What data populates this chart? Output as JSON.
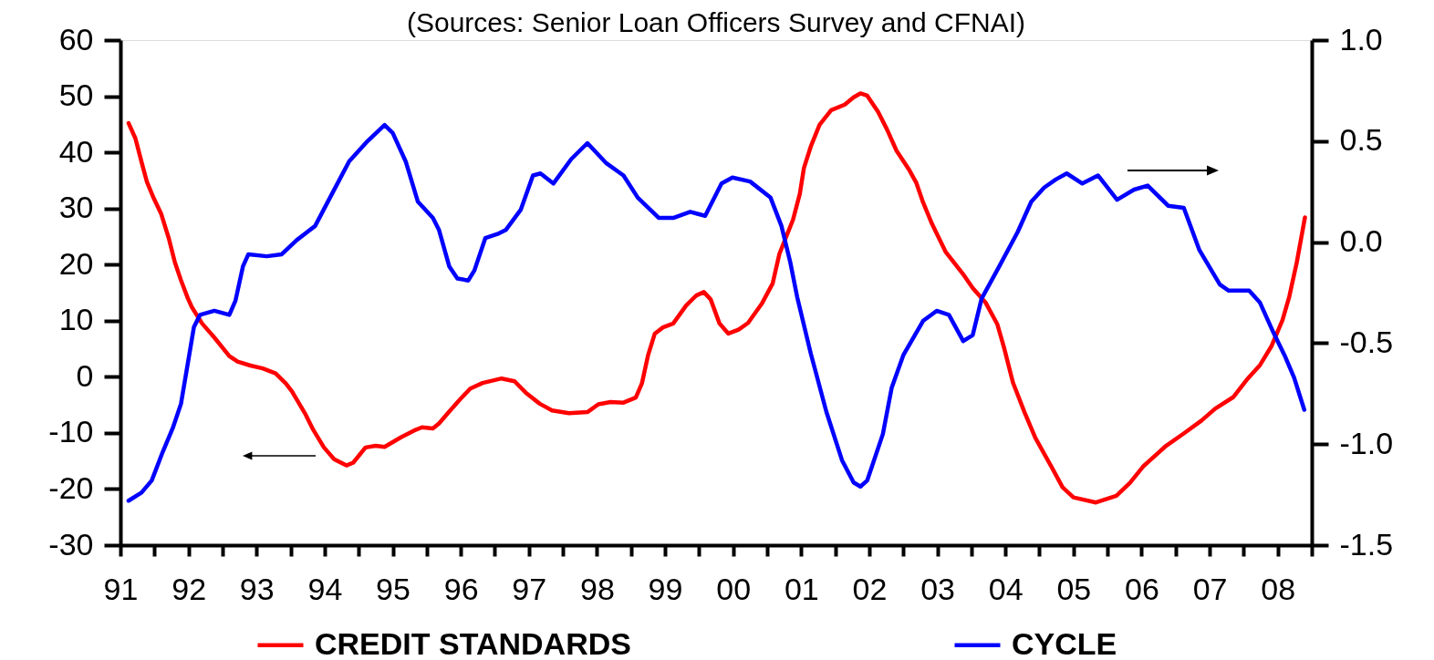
{
  "chart_data": {
    "type": "line",
    "title": "(Sources: Senior Loan Officers Survey and CFNAI)",
    "xlim": [
      1991,
      2008.5
    ],
    "xticks": [
      {
        "value": 1991,
        "label": "91"
      },
      {
        "value": 1991.5,
        "label": null
      },
      {
        "value": 1992,
        "label": "92"
      },
      {
        "value": 1992.5,
        "label": null
      },
      {
        "value": 1993,
        "label": "93"
      },
      {
        "value": 1993.5,
        "label": null
      },
      {
        "value": 1994,
        "label": "94"
      },
      {
        "value": 1994.5,
        "label": null
      },
      {
        "value": 1995,
        "label": "95"
      },
      {
        "value": 1995.5,
        "label": null
      },
      {
        "value": 1996,
        "label": "96"
      },
      {
        "value": 1996.5,
        "label": null
      },
      {
        "value": 1997,
        "label": "97"
      },
      {
        "value": 1997.5,
        "label": null
      },
      {
        "value": 1998,
        "label": "98"
      },
      {
        "value": 1998.5,
        "label": null
      },
      {
        "value": 1999,
        "label": "99"
      },
      {
        "value": 1999.5,
        "label": null
      },
      {
        "value": 2000,
        "label": "00"
      },
      {
        "value": 2000.5,
        "label": null
      },
      {
        "value": 2001,
        "label": "01"
      },
      {
        "value": 2001.5,
        "label": null
      },
      {
        "value": 2002,
        "label": "02"
      },
      {
        "value": 2002.5,
        "label": null
      },
      {
        "value": 2003,
        "label": "03"
      },
      {
        "value": 2003.5,
        "label": null
      },
      {
        "value": 2004,
        "label": "04"
      },
      {
        "value": 2004.5,
        "label": null
      },
      {
        "value": 2005,
        "label": "05"
      },
      {
        "value": 2005.5,
        "label": null
      },
      {
        "value": 2006,
        "label": "06"
      },
      {
        "value": 2006.5,
        "label": null
      },
      {
        "value": 2007,
        "label": "07"
      },
      {
        "value": 2007.5,
        "label": null
      },
      {
        "value": 2008,
        "label": "08"
      },
      {
        "value": 2008.5,
        "label": null
      }
    ],
    "ylim": [
      -30,
      60
    ],
    "yticks": [
      -30,
      -20,
      -10,
      0,
      10,
      20,
      30,
      40,
      50,
      60
    ],
    "y2lim": [
      -1.5,
      1.0
    ],
    "y2ticks": [
      {
        "value": -1.5,
        "label": "-1.5"
      },
      {
        "value": -1,
        "label": "-1.0"
      },
      {
        "value": -0.5,
        "label": "-0.5"
      },
      {
        "value": 0,
        "label": "0.0"
      },
      {
        "value": 0.5,
        "label": "0.5"
      },
      {
        "value": 1,
        "label": "1.0"
      }
    ],
    "legend": "bottom",
    "series": [
      {
        "name": "CREDIT STANDARDS",
        "color": "#ff0000",
        "x": [
          1991.12,
          1991.22,
          1991.31,
          1991.39,
          1991.49,
          1991.6,
          1991.71,
          1991.8,
          1991.89,
          1991.99,
          1992.05,
          1992.2,
          1992.38,
          1992.6,
          1992.72,
          1992.91,
          1993.09,
          1993.28,
          1993.43,
          1993.52,
          1993.71,
          1993.83,
          1993.99,
          1994.14,
          1994.32,
          1994.42,
          1994.6,
          1994.75,
          1994.88,
          1995.12,
          1995.31,
          1995.43,
          1995.59,
          1995.68,
          1995.83,
          1995.99,
          1996.14,
          1996.32,
          1996.6,
          1996.79,
          1996.97,
          1997.16,
          1997.34,
          1997.59,
          1997.86,
          1998.02,
          1998.2,
          1998.39,
          1998.57,
          1998.66,
          1998.75,
          1998.85,
          1998.97,
          1999.12,
          1999.31,
          1999.46,
          1999.57,
          1999.67,
          1999.8,
          1999.93,
          2000.08,
          2000.22,
          2000.42,
          2000.58,
          2000.68,
          2000.88,
          2000.98,
          2001.04,
          2001.14,
          2001.27,
          2001.44,
          2001.64,
          2001.77,
          2001.87,
          2001.97,
          2002.13,
          2002.26,
          2002.4,
          2002.59,
          2002.69,
          2002.79,
          2002.92,
          2003.12,
          2003.39,
          2003.52,
          2003.71,
          2003.88,
          2003.98,
          2004.11,
          2004.28,
          2004.44,
          2004.67,
          2004.84,
          2005.0,
          2005.33,
          2005.63,
          2005.83,
          2006.03,
          2006.36,
          2006.62,
          2006.88,
          2007.08,
          2007.35,
          2007.54,
          2007.74,
          2007.91,
          2008.07,
          2008.17,
          2008.28,
          2008.4
        ],
        "values": [
          45.2,
          42.5,
          38.3,
          34.7,
          31.8,
          29.0,
          24.7,
          20.4,
          17.2,
          14.0,
          12.4,
          9.5,
          7.0,
          3.7,
          2.7,
          2.0,
          1.5,
          0.6,
          -1.2,
          -2.6,
          -6.5,
          -9.4,
          -12.6,
          -14.7,
          -15.8,
          -15.3,
          -12.6,
          -12.3,
          -12.5,
          -10.8,
          -9.6,
          -9.0,
          -9.2,
          -8.3,
          -6.2,
          -4.0,
          -2.1,
          -1.1,
          -0.3,
          -0.8,
          -3.0,
          -4.8,
          -6.0,
          -6.5,
          -6.3,
          -4.9,
          -4.5,
          -4.6,
          -3.7,
          -1.2,
          3.8,
          7.7,
          8.8,
          9.5,
          12.7,
          14.5,
          15.1,
          13.8,
          9.5,
          7.7,
          8.4,
          9.6,
          13.0,
          16.6,
          21.9,
          28.0,
          32.6,
          37.2,
          41.0,
          44.9,
          47.5,
          48.5,
          49.8,
          50.5,
          50.1,
          47.2,
          44.1,
          40.3,
          36.8,
          34.6,
          31.1,
          27.3,
          22.3,
          18.1,
          15.8,
          13.2,
          9.4,
          5.2,
          -1.0,
          -6.3,
          -10.9,
          -15.9,
          -19.7,
          -21.5,
          -22.4,
          -21.2,
          -18.9,
          -15.9,
          -12.3,
          -10.1,
          -7.8,
          -5.7,
          -3.6,
          -0.6,
          2.1,
          5.5,
          10.1,
          14.3,
          20.4,
          28.4
        ]
      },
      {
        "name": "CYCLE",
        "color": "#0000ff",
        "axis": "y2",
        "x": [
          1991.12,
          1991.31,
          1991.46,
          1991.62,
          1991.77,
          1991.89,
          1991.99,
          1992.08,
          1992.17,
          1992.38,
          1992.6,
          1992.69,
          1992.8,
          1992.88,
          1993.15,
          1993.37,
          1993.59,
          1993.86,
          1994.11,
          1994.36,
          1994.63,
          1994.88,
          1995.0,
          1995.19,
          1995.37,
          1995.59,
          1995.68,
          1995.83,
          1995.95,
          1996.11,
          1996.2,
          1996.36,
          1996.54,
          1996.66,
          1996.88,
          1997.06,
          1997.17,
          1997.36,
          1997.62,
          1997.86,
          1998.14,
          1998.39,
          1998.6,
          1998.91,
          1999.12,
          1999.37,
          1999.59,
          1999.83,
          1999.99,
          2000.25,
          2000.55,
          2000.71,
          2000.84,
          2000.94,
          2001.14,
          2001.37,
          2001.6,
          2001.77,
          2001.87,
          2001.97,
          2002.2,
          2002.33,
          2002.5,
          2002.79,
          2002.99,
          2003.17,
          2003.38,
          2003.52,
          2003.65,
          2003.91,
          2004.18,
          2004.38,
          2004.57,
          2004.74,
          2004.9,
          2005.13,
          2005.36,
          2005.64,
          2005.89,
          2006.09,
          2006.39,
          2006.62,
          2006.85,
          2007.15,
          2007.28,
          2007.58,
          2007.74,
          2007.94,
          2008.1,
          2008.24,
          2008.39
        ],
        "values": [
          -1.28,
          -1.24,
          -1.18,
          -1.04,
          -0.92,
          -0.8,
          -0.6,
          -0.42,
          -0.36,
          -0.34,
          -0.36,
          -0.29,
          -0.12,
          -0.06,
          -0.07,
          -0.06,
          0.01,
          0.08,
          0.24,
          0.4,
          0.5,
          0.58,
          0.54,
          0.4,
          0.2,
          0.12,
          0.06,
          -0.12,
          -0.18,
          -0.19,
          -0.14,
          0.02,
          0.04,
          0.06,
          0.16,
          0.33,
          0.34,
          0.29,
          0.41,
          0.49,
          0.39,
          0.33,
          0.22,
          0.12,
          0.12,
          0.15,
          0.13,
          0.29,
          0.32,
          0.3,
          0.22,
          0.08,
          -0.1,
          -0.27,
          -0.55,
          -0.84,
          -1.08,
          -1.19,
          -1.21,
          -1.18,
          -0.95,
          -0.72,
          -0.56,
          -0.39,
          -0.34,
          -0.36,
          -0.49,
          -0.46,
          -0.28,
          -0.12,
          0.05,
          0.2,
          0.27,
          0.31,
          0.34,
          0.29,
          0.33,
          0.21,
          0.26,
          0.28,
          0.18,
          0.17,
          -0.04,
          -0.21,
          -0.24,
          -0.24,
          -0.3,
          -0.45,
          -0.56,
          -0.67,
          -0.83
        ]
      }
    ]
  }
}
